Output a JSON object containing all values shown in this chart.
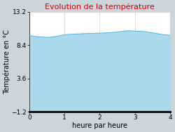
{
  "title": "Evolution de la température",
  "title_color": "#dd0000",
  "xlabel": "heure par heure",
  "ylabel": "Température en °C",
  "xlim": [
    0,
    4
  ],
  "ylim": [
    -1.2,
    13.2
  ],
  "xticks": [
    0,
    1,
    2,
    3,
    4
  ],
  "yticks": [
    -1.2,
    3.6,
    8.4,
    13.2
  ],
  "fig_bg_color": "#ccd4dc",
  "plot_bg_color": "#ffffff",
  "fill_color": "#aad8ed",
  "line_color": "#66bbdd",
  "x": [
    0.0,
    0.08,
    0.17,
    0.25,
    0.33,
    0.42,
    0.5,
    0.6,
    0.7,
    0.8,
    0.9,
    1.0,
    1.1,
    1.2,
    1.3,
    1.4,
    1.5,
    1.6,
    1.7,
    1.8,
    1.9,
    2.0,
    2.1,
    2.2,
    2.3,
    2.4,
    2.5,
    2.6,
    2.7,
    2.8,
    2.9,
    3.0,
    3.1,
    3.2,
    3.3,
    3.4,
    3.5,
    3.6,
    3.7,
    3.8,
    3.9,
    4.0
  ],
  "y": [
    9.8,
    9.72,
    9.65,
    9.6,
    9.58,
    9.55,
    9.52,
    9.55,
    9.6,
    9.7,
    9.8,
    9.9,
    9.95,
    9.98,
    10.0,
    10.02,
    10.05,
    10.07,
    10.09,
    10.1,
    10.12,
    10.13,
    10.15,
    10.18,
    10.2,
    10.25,
    10.3,
    10.35,
    10.42,
    10.48,
    10.45,
    10.42,
    10.4,
    10.38,
    10.32,
    10.25,
    10.18,
    10.1,
    10.0,
    9.92,
    9.87,
    9.82
  ],
  "title_fontsize": 8,
  "label_fontsize": 7,
  "tick_fontsize": 6.5
}
